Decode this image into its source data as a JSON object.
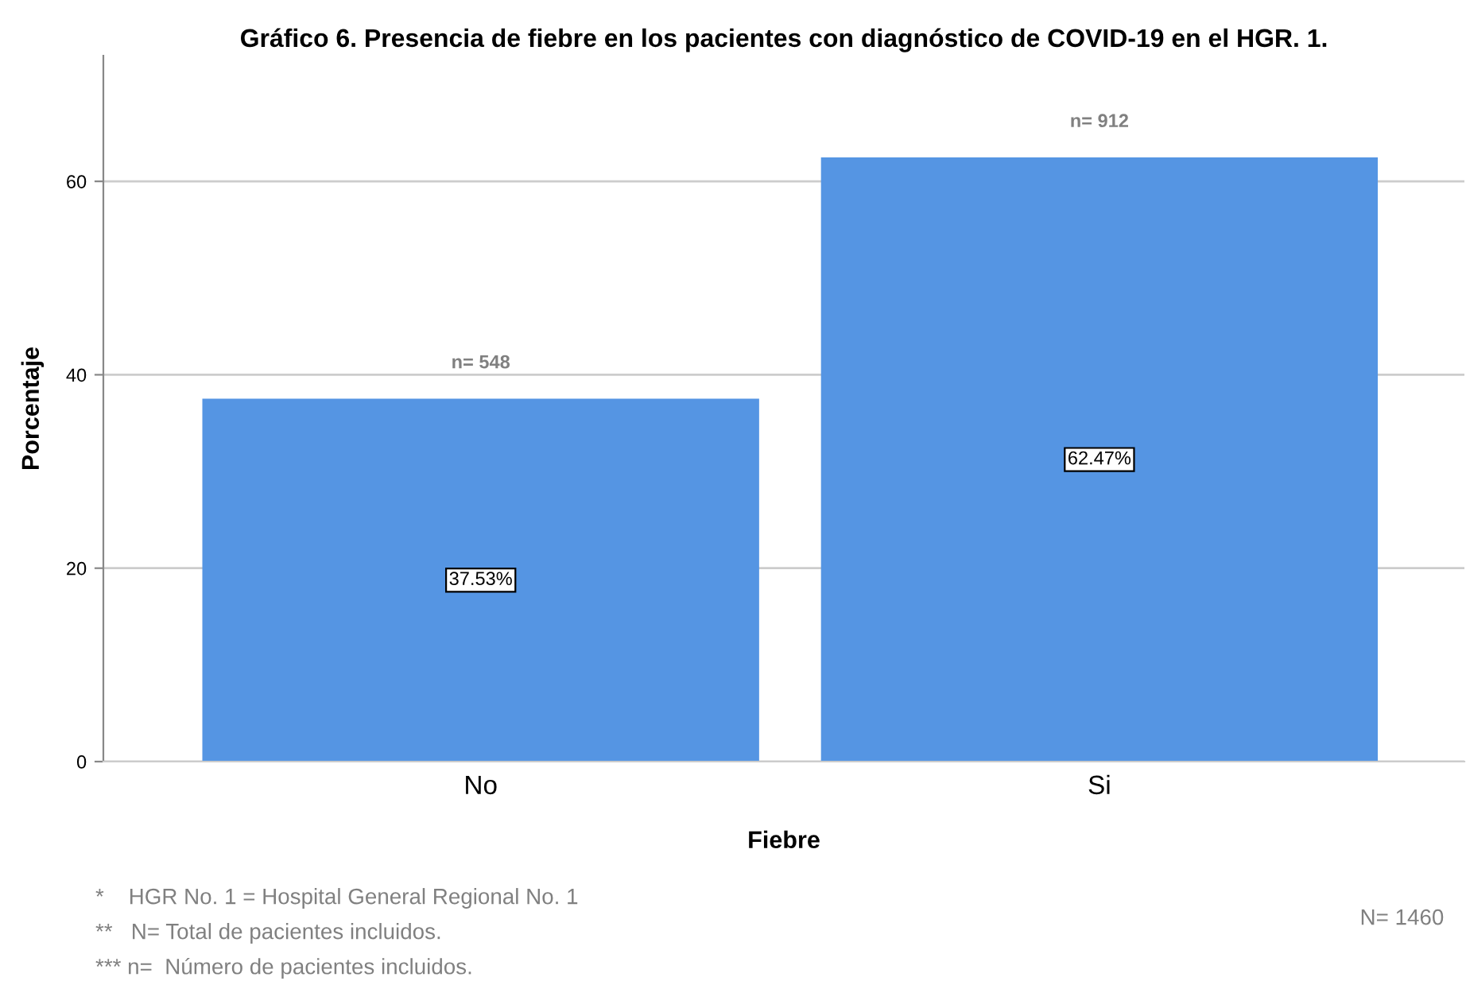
{
  "chart_data": {
    "type": "bar",
    "title": "Gráfico 6. Presencia de fiebre en los pacientes con diagnóstico de COVID-19 en el HGR. 1.",
    "xlabel": "Fiebre",
    "ylabel": "Porcentaje",
    "categories": [
      "No",
      "Si"
    ],
    "values": [
      37.53,
      62.47
    ],
    "value_labels": [
      "37.53%",
      "62.47%"
    ],
    "color": "#5595e3",
    "ylim": [
      0,
      73
    ],
    "yticks": [
      0,
      20,
      40,
      60
    ],
    "grid": "y",
    "annotations": [
      {
        "text": "n= 548",
        "x": "No",
        "y": 37.53
      },
      {
        "text": "n= 912",
        "x": "Si",
        "y": 62.47
      },
      "N= 1460",
      "*    HGR No. 1 = Hospital General Regional No. 1",
      "**   N= Total de pacientes incluidos.",
      "*** n=  Número de pacientes incluidos."
    ]
  }
}
